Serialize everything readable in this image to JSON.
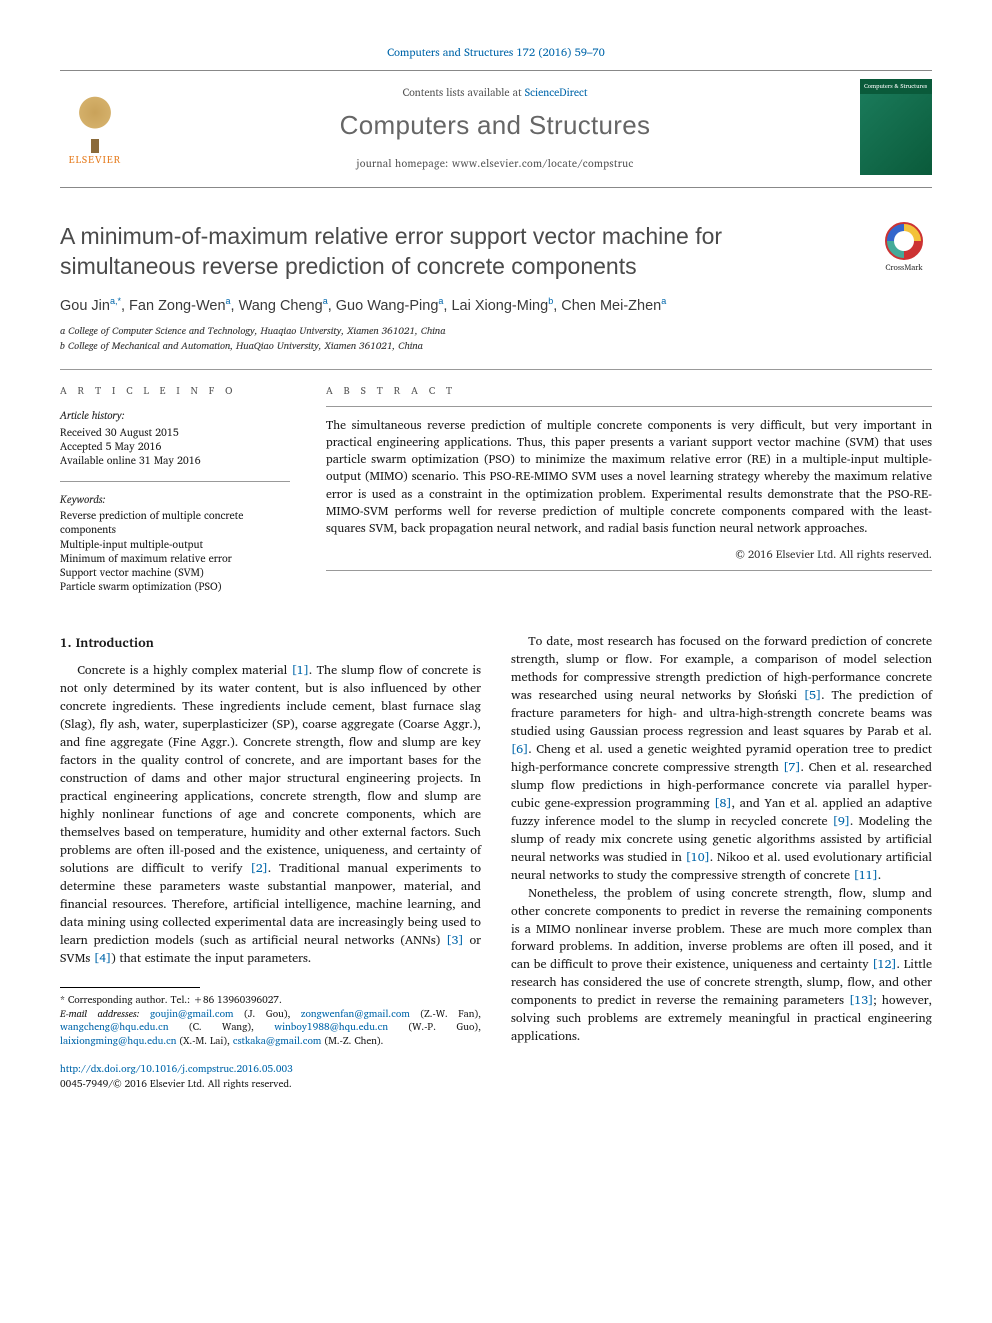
{
  "citation": "Computers and Structures 172 (2016) 59–70",
  "header": {
    "contents_prefix": "Contents lists available at ",
    "contents_link": "ScienceDirect",
    "journal": "Computers and Structures",
    "homepage_prefix": "journal homepage: ",
    "homepage": "www.elsevier.com/locate/compstruc",
    "publisher": "ELSEVIER",
    "cover_title": "Computers & Structures"
  },
  "crossmark": "CrossMark",
  "title": "A minimum-of-maximum relative error support vector machine for simultaneous reverse prediction of concrete components",
  "authors_html": "Gou Jin<sup>a,*</sup>, Fan Zong-Wen<sup>a</sup>, Wang Cheng<sup>a</sup>, Guo Wang-Ping<sup>a</sup>, Lai Xiong-Ming<sup>b</sup>, Chen Mei-Zhen<sup>a</sup>",
  "affiliations": {
    "a": "a College of Computer Science and Technology, Huaqiao University, Xiamen 361021, China",
    "b": "b College of Mechanical and Automation, HuaQiao University, Xiamen 361021, China"
  },
  "info_label": "A R T I C L E   I N F O",
  "abstract_label": "A B S T R A C T",
  "history": {
    "head": "Article history:",
    "received": "Received 30 August 2015",
    "accepted": "Accepted 5 May 2016",
    "online": "Available online 31 May 2016"
  },
  "keywords": {
    "head": "Keywords:",
    "items": [
      "Reverse prediction of multiple concrete components",
      "Multiple-input multiple-output",
      "Minimum of maximum relative error",
      "Support vector machine (SVM)",
      "Particle swarm optimization (PSO)"
    ]
  },
  "abstract": "The simultaneous reverse prediction of multiple concrete components is very difficult, but very important in practical engineering applications. Thus, this paper presents a variant support vector machine (SVM) that uses particle swarm optimization (PSO) to minimize the maximum relative error (RE) in a multiple-input multiple-output (MIMO) scenario. This PSO-RE-MIMO SVM uses a novel learning strategy whereby the maximum relative error is used as a constraint in the optimization problem. Experimental results demonstrate that the PSO-RE-MIMO-SVM performs well for reverse prediction of multiple concrete components compared with the least-squares SVM, back propagation neural network, and radial basis function neural network approaches.",
  "copyright": "© 2016 Elsevier Ltd. All rights reserved.",
  "section1": "1. Introduction",
  "col1": {
    "p1a": "Concrete is a highly complex material ",
    "r1": "[1]",
    "p1b": ". The slump flow of concrete is not only determined by its water content, but is also influenced by other concrete ingredients. These ingredients include cement, blast furnace slag (Slag), fly ash, water, superplasticizer (SP), coarse aggregate (Coarse Aggr.), and fine aggregate (Fine Aggr.). Concrete strength, flow and slump are key factors in the quality control of concrete, and are important bases for the construction of dams and other major structural engineering projects. In practical engineering applications, concrete strength, flow and slump are highly nonlinear functions of age and concrete components, which are themselves based on temperature, humidity and other external factors. Such problems are often ill-posed and the existence, uniqueness, and certainty of solutions are difficult to verify ",
    "r2": "[2]",
    "p1c": ". Traditional manual experiments to determine these parameters waste substantial manpower, material, and financial resources. Therefore, artificial intelligence, machine learning, and data mining using collected experimental data are increasingly being used to learn prediction models (such as artificial neural networks (ANNs) ",
    "r3": "[3]",
    "p1d": " or SVMs ",
    "r4": "[4]",
    "p1e": ") that estimate the input parameters."
  },
  "col2": {
    "p1a": "To date, most research has focused on the forward prediction of concrete strength, slump or flow. For example, a comparison of model selection methods for compressive strength prediction of high-performance concrete was researched using neural networks by Słoński ",
    "r5": "[5]",
    "p1b": ". The prediction of fracture parameters for high- and ultra-high-strength concrete beams was studied using Gaussian process regression and least squares by Parab et al. ",
    "r6": "[6]",
    "p1c": ". Cheng et al. used a genetic weighted pyramid operation tree to predict high-performance concrete compressive strength ",
    "r7": "[7]",
    "p1d": ". Chen et al. researched slump flow predictions in high-performance concrete via parallel hyper-cubic gene-expression programming ",
    "r8": "[8]",
    "p1e": ", and Yan et al. applied an adaptive fuzzy inference model to the slump in recycled concrete ",
    "r9": "[9]",
    "p1f": ". Modeling the slump of ready mix concrete using genetic algorithms assisted by artificial neural networks was studied in ",
    "r10": "[10]",
    "p1g": ". Nikoo et al. used evolutionary artificial neural networks to study the compressive strength of concrete ",
    "r11": "[11]",
    "p1h": ".",
    "p2a": "Nonetheless, the problem of using concrete strength, flow, slump and other concrete components to predict in reverse the remaining components is a MIMO nonlinear inverse problem. These are much more complex than forward problems. In addition, inverse problems are often ill posed, and it can be difficult to prove their existence, uniqueness and certainty ",
    "r12": "[12]",
    "p2b": ". Little research has considered the use of concrete strength, slump, flow, and other components to predict in reverse the remaining parameters ",
    "r13": "[13]",
    "p2c": "; however, solving such problems are extremely meaningful in practical engineering applications."
  },
  "footnotes": {
    "corr": "* Corresponding author. Tel.: +86 13960396027.",
    "email_label": "E-mail addresses: ",
    "e1": "goujin@gmail.com",
    "n1": " (J. Gou), ",
    "e2": "zongwenfan@gmail.com",
    "n2": " (Z.-W. Fan), ",
    "e3": "wangcheng@hqu.edu.cn",
    "n3": " (C. Wang), ",
    "e4": "winboy1988@hqu.edu.cn",
    "n4": " (W.-P. Guo), ",
    "e5": "laixiongming@hqu.edu.cn",
    "n5": " (X.-M. Lai), ",
    "e6": "cstkaka@gmail.com",
    "n6": " (M.-Z. Chen)."
  },
  "doi": {
    "link": "http://dx.doi.org/10.1016/j.compstruc.2016.05.003",
    "issn": "0045-7949/© 2016 Elsevier Ltd. All rights reserved."
  }
}
